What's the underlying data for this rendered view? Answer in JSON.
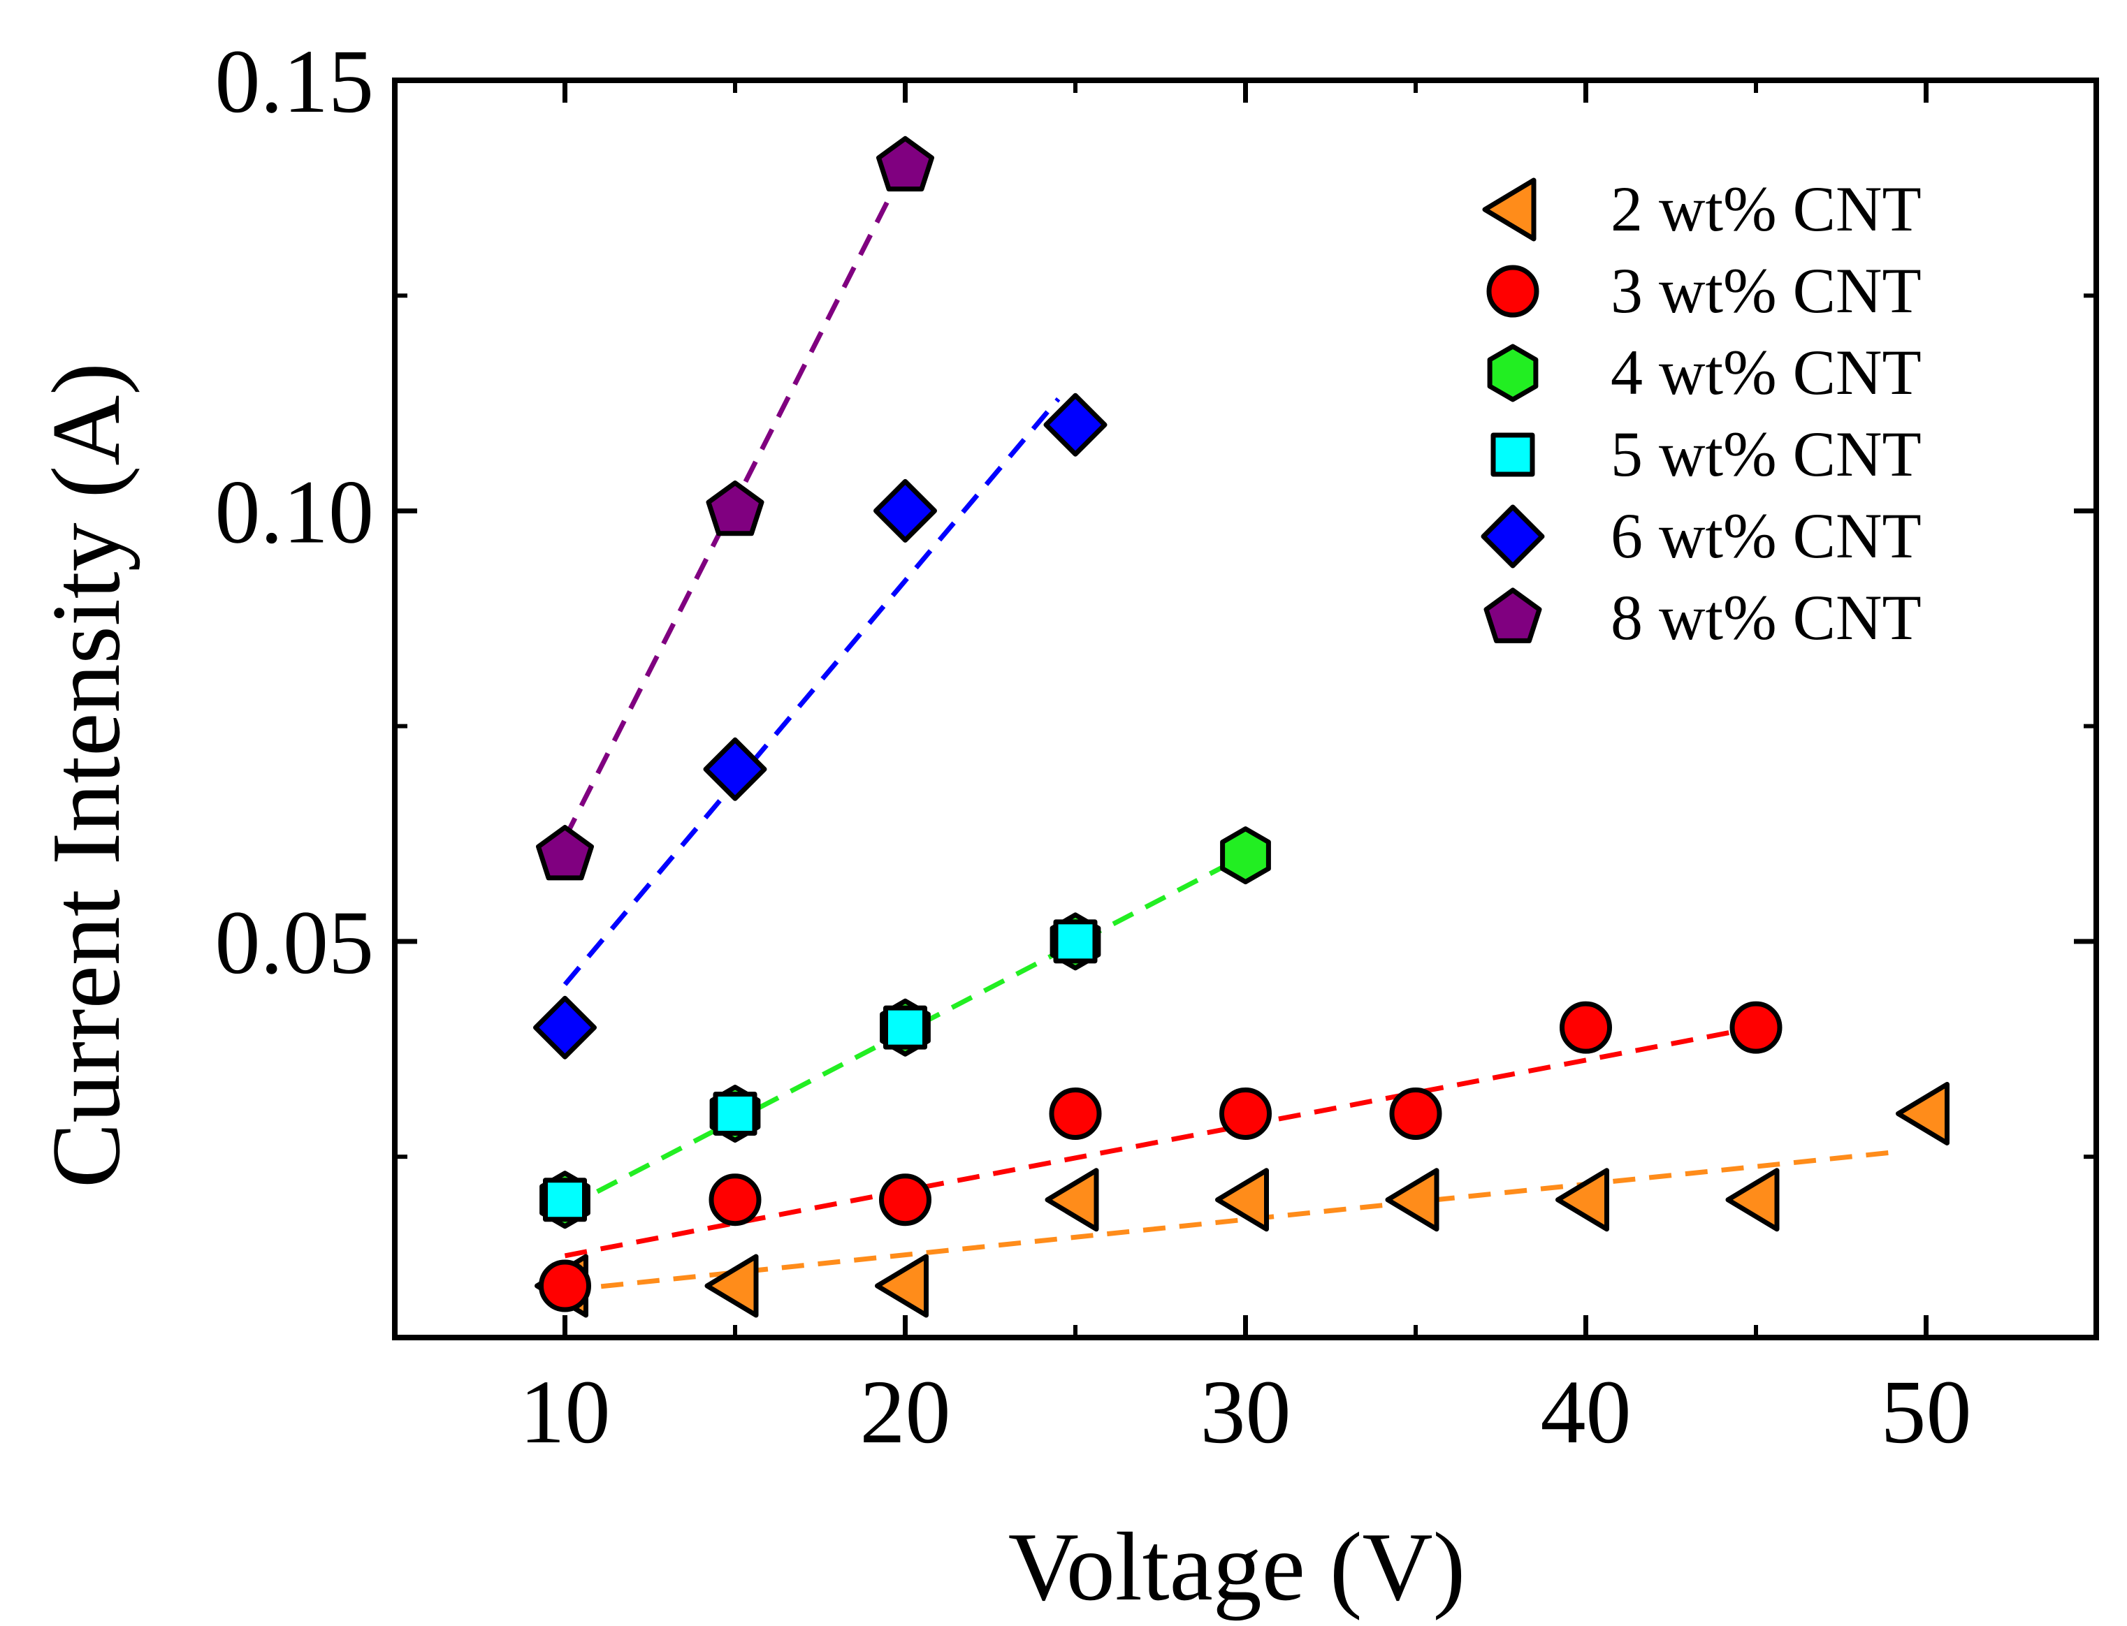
{
  "chart_data": {
    "type": "scatter",
    "xlabel": "Voltage (V)",
    "ylabel": "Current Intensity (A)",
    "xlim": [
      5,
      55
    ],
    "ylim": [
      0.004,
      0.15
    ],
    "x_ticks": [
      10,
      20,
      30,
      40,
      50
    ],
    "x_tick_labels": [
      "10",
      "20",
      "30",
      "40",
      "50"
    ],
    "y_ticks": [
      0.05,
      0.1,
      0.15
    ],
    "y_tick_labels": [
      "0.05",
      "0.10",
      "0.15"
    ],
    "legend_position": "top-right",
    "grid": false,
    "series": [
      {
        "name": "2 wt% CNT",
        "marker": "triangle-left",
        "color": "#ff8c1a",
        "x": [
          10,
          15,
          20,
          25,
          30,
          35,
          40,
          45,
          50
        ],
        "y": [
          0.01,
          0.01,
          0.01,
          0.02,
          0.02,
          0.02,
          0.02,
          0.02,
          0.03
        ],
        "fit": {
          "x": [
            10,
            49
          ],
          "y": [
            0.0095,
            0.0255
          ]
        }
      },
      {
        "name": "3 wt% CNT",
        "marker": "circle",
        "color": "#ff0000",
        "x": [
          10,
          15,
          20,
          25,
          30,
          35,
          40,
          45
        ],
        "y": [
          0.01,
          0.02,
          0.02,
          0.03,
          0.03,
          0.03,
          0.04,
          0.04
        ],
        "fit": {
          "x": [
            10,
            45
          ],
          "y": [
            0.0135,
            0.04
          ]
        }
      },
      {
        "name": "4 wt% CNT",
        "marker": "hexagon",
        "color": "#22ee22",
        "x": [
          10,
          15,
          20,
          25,
          30
        ],
        "y": [
          0.02,
          0.03,
          0.04,
          0.05,
          0.06
        ],
        "fit": {
          "x": [
            10,
            30
          ],
          "y": [
            0.019,
            0.06
          ]
        }
      },
      {
        "name": "5 wt% CNT",
        "marker": "square",
        "color": "#00ffff",
        "x": [
          10,
          15,
          20,
          25
        ],
        "y": [
          0.02,
          0.03,
          0.04,
          0.05
        ],
        "fit": null
      },
      {
        "name": "6 wt% CNT",
        "marker": "diamond",
        "color": "#0000ff",
        "x": [
          10,
          15,
          20,
          25
        ],
        "y": [
          0.04,
          0.07,
          0.1,
          0.11
        ],
        "fit": {
          "x": [
            10,
            24.5
          ],
          "y": [
            0.045,
            0.113
          ]
        }
      },
      {
        "name": "8 wt% CNT",
        "marker": "pentagon",
        "color": "#800080",
        "x": [
          10,
          15,
          20
        ],
        "y": [
          0.06,
          0.1,
          0.14
        ],
        "fit": {
          "x": [
            10,
            20
          ],
          "y": [
            0.062,
            0.14
          ]
        }
      }
    ]
  }
}
